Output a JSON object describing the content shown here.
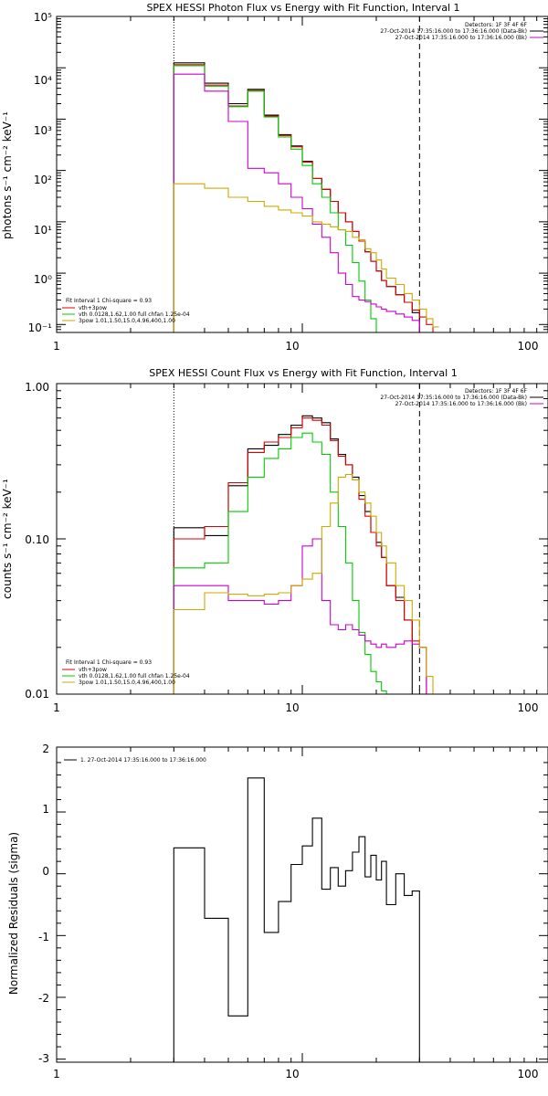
{
  "chart_data": [
    {
      "type": "line",
      "title": "SPEX HESSI Photon Flux vs Energy with Fit Function, Interval 1",
      "xlabel": "",
      "ylabel": "photons s⁻¹ cm⁻² keV⁻¹",
      "xscale": "log",
      "yscale": "log",
      "xlim": [
        1,
        100
      ],
      "ylim": [
        0.07,
        100000
      ],
      "x_tick_labels": [
        "1",
        "10",
        "100"
      ],
      "y_tick_labels": [
        "10⁻¹",
        "10⁰",
        "10¹",
        "10²",
        "10³",
        "10⁴",
        "10⁵"
      ],
      "vlines": [
        {
          "x": 3.0,
          "style": "dotted"
        },
        {
          "x": 30.0,
          "style": "dashed"
        }
      ],
      "legend_top_right": [
        {
          "text": "Detectors: 1F 3F 4F 6F",
          "color": ""
        },
        {
          "text": "27-Oct-2014 17:35:16.000 to 17:36:16.000 (Data-Bk)",
          "color": "#000000"
        },
        {
          "text": "27-Oct-2014 17:35:16.000 to 17:36:16.000 (Bk)",
          "color": "#cc00cc"
        }
      ],
      "legend_bottom_left": [
        {
          "text": "Fit Interval 1    Chi-square = 0.93",
          "color": ""
        },
        {
          "text": "vth+3pow",
          "color": "#dd0000"
        },
        {
          "text": "vth 0.0128,1.62,1.00  full chfan 1.25e-04",
          "color": "#00cc00"
        },
        {
          "text": "3pow 1.01,1.50,15.0,4.96,400,1.00",
          "color": "#ccaa00"
        }
      ],
      "edges": [
        3,
        4,
        5,
        6,
        7,
        8,
        9,
        10,
        11,
        12,
        13,
        14,
        15,
        16,
        17,
        18,
        19,
        20,
        21,
        22,
        24,
        26,
        28,
        30,
        32,
        34,
        36
      ],
      "series": [
        {
          "color": "#000000",
          "values": [
            12500,
            5000,
            2000,
            3800,
            1200,
            500,
            300,
            150,
            70,
            43,
            25,
            15,
            10,
            6.5,
            4.2,
            2.6,
            1.7,
            1.1,
            0.72,
            0.55,
            0.38,
            0.27,
            0.17,
            null,
            null,
            null
          ]
        },
        {
          "color": "#dd0000",
          "values": [
            11500,
            4600,
            1800,
            3600,
            1150,
            480,
            290,
            145,
            70,
            43,
            25,
            15,
            10,
            6.5,
            4.2,
            2.6,
            1.7,
            1.1,
            0.72,
            0.55,
            0.38,
            0.27,
            0.19,
            0.14,
            0.1,
            0.07
          ]
        },
        {
          "color": "#00cc00",
          "values": [
            11000,
            4400,
            1750,
            3500,
            1100,
            450,
            260,
            125,
            55,
            30,
            15,
            7,
            3.5,
            1.6,
            0.7,
            0.3,
            0.13,
            null,
            null,
            null,
            null,
            null,
            null,
            null,
            null,
            null
          ]
        },
        {
          "color": "#cc00cc",
          "values": [
            7500,
            3500,
            900,
            110,
            90,
            55,
            30,
            18,
            9,
            5,
            2.5,
            1.0,
            0.6,
            0.35,
            0.3,
            0.28,
            0.25,
            0.22,
            0.2,
            0.18,
            0.16,
            0.14,
            0.12,
            null,
            null,
            null
          ]
        },
        {
          "color": "#ccaa00",
          "values": [
            55,
            45,
            30,
            25,
            20,
            17,
            15,
            13,
            10,
            9,
            8,
            7,
            6.5,
            5,
            4.5,
            3,
            2.5,
            1.8,
            1.2,
            0.8,
            0.6,
            0.4,
            0.3,
            0.2,
            0.13,
            0.09
          ]
        }
      ]
    },
    {
      "type": "line",
      "title": "SPEX HESSI Count Flux vs Energy with Fit Function, Interval 1",
      "xlabel": "",
      "ylabel": "counts s⁻¹ cm⁻² keV⁻¹",
      "xscale": "log",
      "yscale": "log",
      "xlim": [
        1,
        100
      ],
      "ylim": [
        0.01,
        1.0
      ],
      "x_tick_labels": [
        "1",
        "10",
        "100"
      ],
      "y_tick_labels": [
        "0.01",
        "0.10",
        "1.00"
      ],
      "vlines": [
        {
          "x": 3.0,
          "style": "dotted"
        },
        {
          "x": 30.0,
          "style": "dashed"
        }
      ],
      "legend_top_right": [
        {
          "text": "Detectors: 1F 3F 4F 6F",
          "color": ""
        },
        {
          "text": "27-Oct-2014 17:35:16.000 to 17:36:16.000 (Data-Bk)",
          "color": "#000000"
        },
        {
          "text": "27-Oct-2014 17:35:16.000 to 17:36:16.000 (Bk)",
          "color": "#cc00cc"
        }
      ],
      "legend_bottom_left": [
        {
          "text": "Fit Interval 1    Chi-square = 0.93",
          "color": ""
        },
        {
          "text": "vth+3pow",
          "color": "#dd0000"
        },
        {
          "text": "vth 0.0128,1.62,1.00  full chfan 1.25e-04",
          "color": "#00cc00"
        },
        {
          "text": "3pow 1.01,1.50,15.0,4.96,400,1.00",
          "color": "#ccaa00"
        }
      ],
      "edges": [
        3,
        4,
        5,
        6,
        7,
        8,
        9,
        10,
        11,
        12,
        13,
        14,
        15,
        16,
        17,
        18,
        19,
        20,
        21,
        22,
        24,
        26,
        28,
        30,
        32,
        34,
        36
      ],
      "series": [
        {
          "color": "#000000",
          "values": [
            0.118,
            0.105,
            0.22,
            0.38,
            0.4,
            0.47,
            0.54,
            0.62,
            0.6,
            0.56,
            0.44,
            0.35,
            0.3,
            0.25,
            0.19,
            0.15,
            0.11,
            0.095,
            0.076,
            0.05,
            0.042,
            0.03,
            null,
            null,
            null,
            null
          ]
        },
        {
          "color": "#dd0000",
          "values": [
            0.1,
            0.12,
            0.23,
            0.36,
            0.42,
            0.45,
            0.52,
            0.6,
            0.58,
            0.54,
            0.43,
            0.34,
            0.3,
            0.24,
            0.18,
            0.14,
            0.11,
            0.09,
            0.076,
            0.05,
            0.04,
            0.03,
            0.022,
            0.02,
            null,
            null
          ]
        },
        {
          "color": "#00cc00",
          "values": [
            0.065,
            0.07,
            0.15,
            0.25,
            0.33,
            0.38,
            0.45,
            0.48,
            0.42,
            0.35,
            0.2,
            0.12,
            0.07,
            0.04,
            0.025,
            0.018,
            0.014,
            0.012,
            0.0105,
            0.01,
            null,
            null,
            null,
            null,
            null,
            null
          ]
        },
        {
          "color": "#cc00cc",
          "values": [
            0.05,
            0.05,
            0.04,
            0.04,
            0.038,
            0.04,
            0.05,
            0.09,
            0.1,
            0.04,
            0.028,
            0.026,
            0.028,
            0.026,
            0.024,
            0.022,
            0.021,
            0.02,
            0.021,
            0.02,
            0.021,
            0.022,
            0.021,
            0.02,
            null,
            null
          ]
        },
        {
          "color": "#ccaa00",
          "values": [
            0.035,
            0.045,
            0.044,
            0.043,
            0.044,
            0.045,
            0.05,
            0.055,
            0.06,
            0.12,
            0.17,
            0.25,
            0.26,
            0.24,
            0.2,
            0.17,
            0.14,
            0.11,
            0.09,
            0.07,
            0.05,
            0.04,
            0.03,
            0.02,
            0.013,
            0.009
          ]
        }
      ]
    },
    {
      "type": "line",
      "title": "",
      "xlabel": "",
      "ylabel": "Normalized Residuals (sigma)",
      "xscale": "log",
      "yscale": "linear",
      "xlim": [
        1,
        100
      ],
      "ylim": [
        -3.05,
        2.05
      ],
      "x_tick_labels": [
        "1",
        "10",
        "100"
      ],
      "y_tick_labels": [
        "-3",
        "-2",
        "-1",
        "0",
        "1",
        "2"
      ],
      "legend": [
        {
          "text": "1. 27-Oct-2014 17:35:16.000 to 17:36:16.000",
          "color": "#000000"
        }
      ],
      "edges": [
        3,
        4,
        5,
        6,
        7,
        8,
        9,
        10,
        11,
        12,
        13,
        14,
        15,
        16,
        17,
        18,
        19,
        20,
        21,
        22,
        24,
        26,
        28,
        30
      ],
      "series": [
        {
          "color": "#000000",
          "values": [
            0.42,
            -0.72,
            -2.3,
            1.55,
            -0.95,
            -0.45,
            0.15,
            0.45,
            0.9,
            -0.25,
            0.1,
            -0.2,
            0.05,
            0.35,
            0.6,
            -0.05,
            0.3,
            -0.1,
            0.2,
            -0.5,
            0.0,
            -0.35,
            -0.28
          ]
        }
      ]
    }
  ]
}
